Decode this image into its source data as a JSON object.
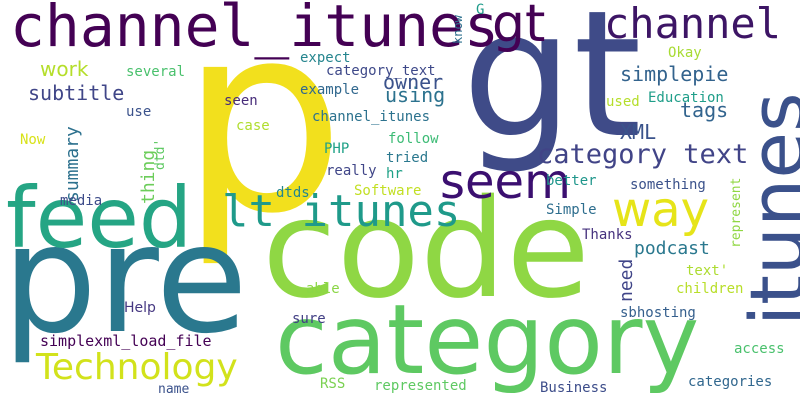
{
  "words": [
    {
      "text": "p",
      "color": "#f2e01d"
    },
    {
      "text": "gt",
      "color": "#3f4b88"
    },
    {
      "text": "code",
      "color": "#8fd744"
    },
    {
      "text": "pre",
      "color": "#2a788e"
    },
    {
      "text": "category",
      "color": "#5ec962"
    },
    {
      "text": "itunes",
      "color": "#3b518b"
    },
    {
      "text": "feed",
      "color": "#25a584"
    },
    {
      "text": "channel_itunes",
      "color": "#440154"
    },
    {
      "text": "gt",
      "color": "#440154"
    },
    {
      "text": "channel",
      "color": "#3d1565"
    },
    {
      "text": "lt itunes",
      "color": "#1f9a8a"
    },
    {
      "text": "seem",
      "color": "#3b0f70"
    },
    {
      "text": "way",
      "color": "#e6e419"
    },
    {
      "text": "Technology",
      "color": "#d2e21b"
    },
    {
      "text": "category text",
      "color": "#414487"
    },
    {
      "text": "work",
      "color": "#b5de2b"
    },
    {
      "text": "subtitle",
      "color": "#404688"
    },
    {
      "text": "owner",
      "color": "#3b528b"
    },
    {
      "text": "using",
      "color": "#2c728e"
    },
    {
      "text": "simplepie",
      "color": "#33638d"
    },
    {
      "text": "tags",
      "color": "#32648e"
    },
    {
      "text": "XML",
      "color": "#3a538b"
    },
    {
      "text": "summary",
      "color": "#2d718e"
    },
    {
      "text": "thing",
      "color": "#6ccd5a"
    },
    {
      "text": "podcast",
      "color": "#2a788e"
    },
    {
      "text": "need",
      "color": "#404588"
    },
    {
      "text": "Help",
      "color": "#453781"
    },
    {
      "text": "simplexml_load_file",
      "color": "#440154"
    },
    {
      "text": "expect",
      "color": "#25858e"
    },
    {
      "text": "category_text",
      "color": "#3e4989"
    },
    {
      "text": "example",
      "color": "#31688e"
    },
    {
      "text": "several",
      "color": "#4ac16d"
    },
    {
      "text": "use",
      "color": "#3b528b"
    },
    {
      "text": "seen",
      "color": "#472c7a"
    },
    {
      "text": "case",
      "color": "#b0dd2f"
    },
    {
      "text": "channel_itunes",
      "color": "#2c728e"
    },
    {
      "text": "Now",
      "color": "#d8e219"
    },
    {
      "text": "dtd'",
      "color": "#5ec962"
    },
    {
      "text": "PHP",
      "color": "#1fa187"
    },
    {
      "text": "really",
      "color": "#404688"
    },
    {
      "text": "dtds",
      "color": "#24868e"
    },
    {
      "text": "media",
      "color": "#3e4c8a"
    },
    {
      "text": "Software",
      "color": "#c2df23"
    },
    {
      "text": "follow",
      "color": "#3cbb75"
    },
    {
      "text": "tried",
      "color": "#2a788e"
    },
    {
      "text": "hr",
      "color": "#1fa187"
    },
    {
      "text": "know",
      "color": "#2d708e"
    },
    {
      "text": "G",
      "color": "#1e9b8a"
    },
    {
      "text": "Okay",
      "color": "#a8db34"
    },
    {
      "text": "used",
      "color": "#b5de2b"
    },
    {
      "text": "Education",
      "color": "#1f9e89"
    },
    {
      "text": "better",
      "color": "#1f968b"
    },
    {
      "text": "something",
      "color": "#3b528b"
    },
    {
      "text": "represent",
      "color": "#90d743"
    },
    {
      "text": "Simple",
      "color": "#2e6e8e"
    },
    {
      "text": "Thanks",
      "color": "#46327e"
    },
    {
      "text": "text'",
      "color": "#addc30"
    },
    {
      "text": "children",
      "color": "#b8de29"
    },
    {
      "text": "sbhosting",
      "color": "#355f8d"
    },
    {
      "text": "able",
      "color": "#8bd646"
    },
    {
      "text": "sure",
      "color": "#423f85"
    },
    {
      "text": "access",
      "color": "#4ac16d"
    },
    {
      "text": "RSS",
      "color": "#7ad151"
    },
    {
      "text": "represented",
      "color": "#5ec962"
    },
    {
      "text": "Business",
      "color": "#3d4d8a"
    },
    {
      "text": "categories",
      "color": "#31678e"
    },
    {
      "text": "name",
      "color": "#3b528b"
    }
  ]
}
